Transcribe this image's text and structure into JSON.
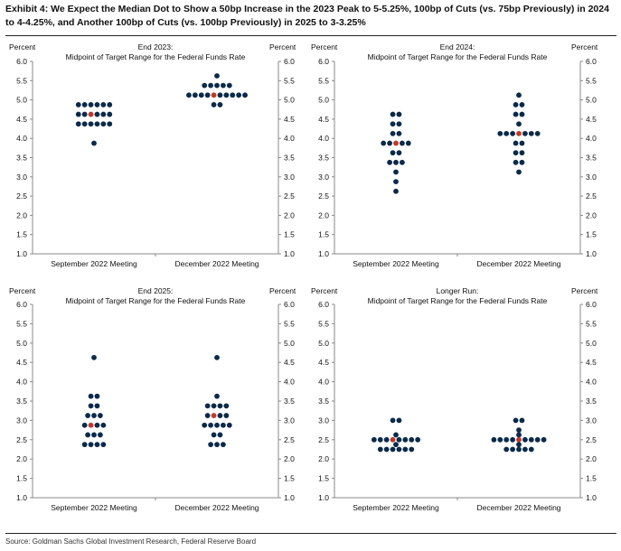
{
  "title": "Exhibit 4: We Expect the Median Dot to Show a 50bp Increase in the 2023 Peak to 5-5.25%, 100bp of Cuts (vs. 75bp Previously) in 2024 to 4-4.25%, and Another 100bp of Cuts (vs. 100bp Previously) in 2025 to 3-3.25%",
  "source": "Source: Goldman Sachs Global Investment Research, Federal Reserve Board",
  "colors": {
    "dot": "#0b2a4a",
    "median": "#c0392b",
    "axis": "#888888"
  },
  "chart_data": [
    {
      "type": "scatter",
      "title": "End 2023:",
      "subtitle": "Midpoint of Target Range for the Federal Funds Rate",
      "ylabel_left": "Percent",
      "ylabel_right": "Percent",
      "ylim": [
        1.0,
        6.0
      ],
      "yticks": [
        "1.0",
        "1.5",
        "2.0",
        "2.5",
        "3.0",
        "3.5",
        "4.0",
        "4.5",
        "5.0",
        "5.5",
        "6.0"
      ],
      "categories": [
        "September 2022 Meeting",
        "December 2022 Meeting"
      ],
      "groups": [
        {
          "category": "September 2022 Meeting",
          "median": 4.625,
          "dots": [
            {
              "y": 4.875,
              "n": 6
            },
            {
              "y": 4.625,
              "n": 6
            },
            {
              "y": 4.375,
              "n": 6
            },
            {
              "y": 3.875,
              "n": 1
            }
          ]
        },
        {
          "category": "December 2022 Meeting",
          "median": 5.125,
          "dots": [
            {
              "y": 5.625,
              "n": 1
            },
            {
              "y": 5.375,
              "n": 5
            },
            {
              "y": 5.125,
              "n": 10
            },
            {
              "y": 4.875,
              "n": 2
            },
            {
              "y": 4.875,
              "n": 0
            },
            {
              "y": 4.875,
              "n": 0
            },
            {
              "y": 4.875,
              "n": 0
            }
          ]
        }
      ]
    },
    {
      "type": "scatter",
      "title": "End 2024:",
      "subtitle": "Midpoint of Target Range for the Federal Funds Rate",
      "ylabel_left": "Percent",
      "ylabel_right": "Percent",
      "ylim": [
        1.0,
        6.0
      ],
      "yticks": [
        "1.0",
        "1.5",
        "2.0",
        "2.5",
        "3.0",
        "3.5",
        "4.0",
        "4.5",
        "5.0",
        "5.5",
        "6.0"
      ],
      "categories": [
        "September 2022 Meeting",
        "December 2022 Meeting"
      ],
      "groups": [
        {
          "category": "September 2022 Meeting",
          "median": 3.875,
          "dots": [
            {
              "y": 4.625,
              "n": 2
            },
            {
              "y": 4.375,
              "n": 2
            },
            {
              "y": 4.125,
              "n": 2
            },
            {
              "y": 3.875,
              "n": 5
            },
            {
              "y": 3.625,
              "n": 2
            },
            {
              "y": 3.375,
              "n": 3
            },
            {
              "y": 3.125,
              "n": 1
            },
            {
              "y": 2.875,
              "n": 1
            },
            {
              "y": 2.625,
              "n": 1
            }
          ]
        },
        {
          "category": "December 2022 Meeting",
          "median": 4.125,
          "dots": [
            {
              "y": 5.125,
              "n": 1
            },
            {
              "y": 4.875,
              "n": 2
            },
            {
              "y": 4.625,
              "n": 2
            },
            {
              "y": 4.375,
              "n": 1
            },
            {
              "y": 4.125,
              "n": 7
            },
            {
              "y": 3.875,
              "n": 2
            },
            {
              "y": 3.625,
              "n": 2
            },
            {
              "y": 3.375,
              "n": 2
            },
            {
              "y": 3.125,
              "n": 1
            }
          ]
        }
      ]
    },
    {
      "type": "scatter",
      "title": "End 2025:",
      "subtitle": "Midpoint of Target Range for the Federal Funds Rate",
      "ylabel_left": "Percent",
      "ylabel_right": "Percent",
      "ylim": [
        1.0,
        6.0
      ],
      "yticks": [
        "1.0",
        "1.5",
        "2.0",
        "2.5",
        "3.0",
        "3.5",
        "4.0",
        "4.5",
        "5.0",
        "5.5",
        "6.0"
      ],
      "categories": [
        "September 2022 Meeting",
        "December 2022 Meeting"
      ],
      "groups": [
        {
          "category": "September 2022 Meeting",
          "median": 2.875,
          "dots": [
            {
              "y": 4.625,
              "n": 1
            },
            {
              "y": 3.625,
              "n": 2
            },
            {
              "y": 3.375,
              "n": 2
            },
            {
              "y": 3.125,
              "n": 3
            },
            {
              "y": 2.875,
              "n": 4
            },
            {
              "y": 2.625,
              "n": 3
            },
            {
              "y": 2.375,
              "n": 4
            }
          ]
        },
        {
          "category": "December 2022 Meeting",
          "median": 3.125,
          "dots": [
            {
              "y": 4.625,
              "n": 1
            },
            {
              "y": 3.625,
              "n": 1
            },
            {
              "y": 3.375,
              "n": 4
            },
            {
              "y": 3.125,
              "n": 4
            },
            {
              "y": 2.875,
              "n": 5
            },
            {
              "y": 2.625,
              "n": 2
            },
            {
              "y": 2.375,
              "n": 3
            }
          ]
        }
      ]
    },
    {
      "type": "scatter",
      "title": "Longer Run:",
      "subtitle": "Midpoint of Target Range for the Federal Funds Rate",
      "ylabel_left": "Percent",
      "ylabel_right": "Percent",
      "ylim": [
        1.0,
        6.0
      ],
      "yticks": [
        "1.0",
        "1.5",
        "2.0",
        "2.5",
        "3.0",
        "3.5",
        "4.0",
        "4.5",
        "5.0",
        "5.5",
        "6.0"
      ],
      "categories": [
        "September 2022 Meeting",
        "December 2022 Meeting"
      ],
      "groups": [
        {
          "category": "September 2022 Meeting",
          "median": 2.5,
          "dots": [
            {
              "y": 3.0,
              "n": 2
            },
            {
              "y": 2.625,
              "n": 1
            },
            {
              "y": 2.5,
              "n": 8
            },
            {
              "y": 2.375,
              "n": 1
            },
            {
              "y": 2.25,
              "n": 6
            }
          ]
        },
        {
          "category": "December 2022 Meeting",
          "median": 2.5,
          "dots": [
            {
              "y": 3.0,
              "n": 2
            },
            {
              "y": 2.75,
              "n": 1
            },
            {
              "y": 2.625,
              "n": 1
            },
            {
              "y": 2.5,
              "n": 9
            },
            {
              "y": 2.375,
              "n": 1
            },
            {
              "y": 2.25,
              "n": 5
            }
          ]
        }
      ]
    }
  ]
}
